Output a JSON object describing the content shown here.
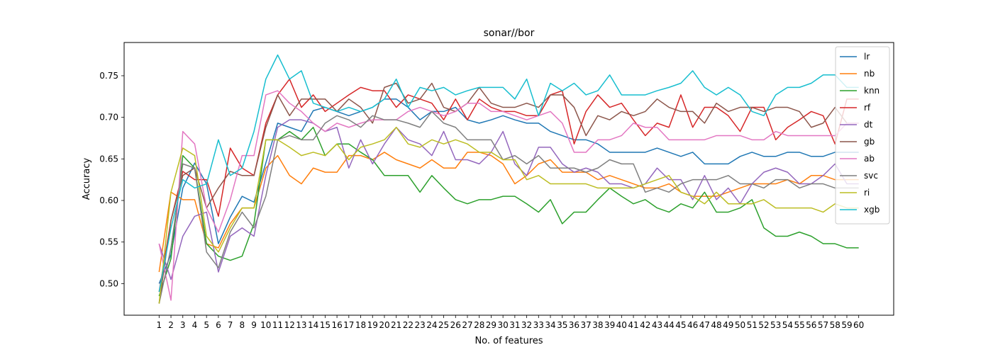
{
  "chart_data": {
    "type": "line",
    "title": "sonar//bor",
    "xlabel": "No. of features",
    "ylabel": "Accuracy",
    "xlim": [
      -1.95,
      62.95
    ],
    "ylim": [
      0.462,
      0.79
    ],
    "x": [
      1,
      2,
      3,
      4,
      5,
      6,
      7,
      8,
      9,
      10,
      11,
      12,
      13,
      14,
      15,
      16,
      17,
      18,
      19,
      20,
      21,
      22,
      23,
      24,
      25,
      26,
      27,
      28,
      29,
      30,
      31,
      32,
      33,
      34,
      35,
      36,
      37,
      38,
      39,
      40,
      41,
      42,
      43,
      44,
      45,
      46,
      47,
      48,
      49,
      50,
      51,
      52,
      53,
      54,
      55,
      56,
      57,
      58,
      59,
      60
    ],
    "yticks": [
      0.5,
      0.55,
      0.6,
      0.65,
      0.7,
      0.75
    ],
    "ytick_labels": [
      "0.50",
      "0.55",
      "0.60",
      "0.65",
      "0.70",
      "0.75"
    ],
    "grid": false,
    "legend_position": "top-right",
    "series": [
      {
        "name": "lr",
        "color": "#1f77b4",
        "values": [
          0.5,
          0.535,
          0.615,
          0.645,
          0.62,
          0.548,
          0.58,
          0.605,
          0.598,
          0.645,
          0.693,
          0.688,
          0.683,
          0.708,
          0.712,
          0.707,
          0.702,
          0.707,
          0.712,
          0.722,
          0.722,
          0.712,
          0.697,
          0.707,
          0.707,
          0.712,
          0.697,
          0.693,
          0.697,
          0.702,
          0.697,
          0.693,
          0.693,
          0.683,
          0.678,
          0.673,
          0.673,
          0.668,
          0.658,
          0.658,
          0.658,
          0.658,
          0.663,
          0.658,
          0.653,
          0.658,
          0.644,
          0.644,
          0.644,
          0.653,
          0.658,
          0.653,
          0.653,
          0.658,
          0.658,
          0.653,
          0.653,
          0.658,
          0.658,
          0.658
        ]
      },
      {
        "name": "nb",
        "color": "#ff7f0e",
        "values": [
          0.514,
          0.61,
          0.601,
          0.601,
          0.548,
          0.543,
          0.572,
          0.591,
          0.591,
          0.639,
          0.654,
          0.63,
          0.62,
          0.639,
          0.634,
          0.634,
          0.654,
          0.654,
          0.649,
          0.658,
          0.649,
          0.644,
          0.639,
          0.649,
          0.639,
          0.639,
          0.658,
          0.658,
          0.654,
          0.644,
          0.62,
          0.63,
          0.644,
          0.649,
          0.634,
          0.634,
          0.634,
          0.625,
          0.63,
          0.625,
          0.62,
          0.615,
          0.615,
          0.62,
          0.61,
          0.605,
          0.605,
          0.605,
          0.61,
          0.615,
          0.62,
          0.62,
          0.62,
          0.625,
          0.62,
          0.63,
          0.63,
          0.625,
          0.625,
          0.625
        ]
      },
      {
        "name": "knn",
        "color": "#2ca02c",
        "values": [
          0.485,
          0.53,
          0.654,
          0.639,
          0.548,
          0.533,
          0.528,
          0.533,
          0.572,
          0.673,
          0.673,
          0.683,
          0.673,
          0.688,
          0.654,
          0.668,
          0.668,
          0.658,
          0.649,
          0.63,
          0.63,
          0.63,
          0.61,
          0.63,
          0.615,
          0.601,
          0.596,
          0.601,
          0.601,
          0.605,
          0.605,
          0.596,
          0.586,
          0.601,
          0.572,
          0.586,
          0.586,
          0.601,
          0.615,
          0.605,
          0.596,
          0.601,
          0.591,
          0.586,
          0.596,
          0.591,
          0.61,
          0.586,
          0.586,
          0.591,
          0.601,
          0.567,
          0.557,
          0.557,
          0.562,
          0.557,
          0.548,
          0.548,
          0.543,
          0.543
        ]
      },
      {
        "name": "rf",
        "color": "#d62728",
        "values": [
          0.49,
          0.576,
          0.635,
          0.625,
          0.625,
          0.581,
          0.663,
          0.639,
          0.63,
          0.693,
          0.727,
          0.746,
          0.712,
          0.727,
          0.707,
          0.717,
          0.727,
          0.736,
          0.732,
          0.732,
          0.712,
          0.727,
          0.722,
          0.717,
          0.697,
          0.722,
          0.697,
          0.722,
          0.712,
          0.707,
          0.707,
          0.702,
          0.702,
          0.727,
          0.732,
          0.668,
          0.707,
          0.727,
          0.712,
          0.717,
          0.697,
          0.678,
          0.693,
          0.688,
          0.727,
          0.688,
          0.712,
          0.712,
          0.702,
          0.683,
          0.712,
          0.712,
          0.673,
          0.688,
          0.697,
          0.707,
          0.702,
          0.668,
          0.722,
          0.722
        ]
      },
      {
        "name": "dt",
        "color": "#9467bd",
        "values": [
          0.548,
          0.505,
          0.557,
          0.581,
          0.586,
          0.514,
          0.557,
          0.567,
          0.557,
          0.63,
          0.688,
          0.697,
          0.697,
          0.693,
          0.683,
          0.688,
          0.639,
          0.673,
          0.644,
          0.668,
          0.688,
          0.673,
          0.668,
          0.654,
          0.683,
          0.649,
          0.649,
          0.644,
          0.658,
          0.683,
          0.644,
          0.63,
          0.664,
          0.664,
          0.644,
          0.634,
          0.639,
          0.634,
          0.62,
          0.62,
          0.615,
          0.62,
          0.639,
          0.625,
          0.625,
          0.601,
          0.63,
          0.601,
          0.615,
          0.596,
          0.62,
          0.634,
          0.639,
          0.634,
          0.62,
          0.62,
          0.63,
          0.644,
          0.62,
          0.62
        ]
      },
      {
        "name": "gb",
        "color": "#8c564b",
        "values": [
          0.476,
          0.576,
          0.63,
          0.639,
          0.591,
          0.615,
          0.635,
          0.63,
          0.63,
          0.688,
          0.727,
          0.702,
          0.722,
          0.722,
          0.722,
          0.707,
          0.722,
          0.712,
          0.693,
          0.736,
          0.741,
          0.717,
          0.722,
          0.741,
          0.712,
          0.707,
          0.717,
          0.736,
          0.717,
          0.712,
          0.712,
          0.717,
          0.712,
          0.727,
          0.727,
          0.712,
          0.678,
          0.702,
          0.697,
          0.707,
          0.702,
          0.707,
          0.722,
          0.712,
          0.707,
          0.707,
          0.693,
          0.717,
          0.707,
          0.712,
          0.712,
          0.707,
          0.712,
          0.712,
          0.707,
          0.688,
          0.693,
          0.712,
          0.693,
          0.693
        ]
      },
      {
        "name": "ab",
        "color": "#e377c2",
        "values": [
          0.548,
          0.48,
          0.683,
          0.668,
          0.591,
          0.562,
          0.601,
          0.654,
          0.654,
          0.727,
          0.732,
          0.717,
          0.707,
          0.693,
          0.683,
          0.693,
          0.688,
          0.693,
          0.697,
          0.697,
          0.697,
          0.707,
          0.712,
          0.707,
          0.702,
          0.707,
          0.717,
          0.717,
          0.707,
          0.707,
          0.702,
          0.697,
          0.702,
          0.707,
          0.693,
          0.658,
          0.658,
          0.673,
          0.673,
          0.678,
          0.693,
          0.688,
          0.688,
          0.673,
          0.673,
          0.673,
          0.673,
          0.678,
          0.678,
          0.678,
          0.673,
          0.673,
          0.683,
          0.678,
          0.678,
          0.678,
          0.678,
          0.678,
          0.693,
          0.693
        ]
      },
      {
        "name": "svc",
        "color": "#7f7f7f",
        "values": [
          0.476,
          0.543,
          0.644,
          0.639,
          0.538,
          0.519,
          0.562,
          0.586,
          0.567,
          0.605,
          0.673,
          0.678,
          0.673,
          0.673,
          0.693,
          0.702,
          0.697,
          0.688,
          0.702,
          0.697,
          0.697,
          0.693,
          0.688,
          0.707,
          0.693,
          0.688,
          0.673,
          0.673,
          0.673,
          0.649,
          0.654,
          0.644,
          0.654,
          0.639,
          0.639,
          0.639,
          0.634,
          0.639,
          0.649,
          0.644,
          0.644,
          0.61,
          0.615,
          0.61,
          0.62,
          0.625,
          0.625,
          0.625,
          0.63,
          0.62,
          0.62,
          0.615,
          0.625,
          0.625,
          0.615,
          0.62,
          0.62,
          0.615,
          0.615,
          0.615
        ]
      },
      {
        "name": "ri",
        "color": "#bcbd22",
        "values": [
          0.476,
          0.61,
          0.663,
          0.654,
          0.557,
          0.538,
          0.567,
          0.591,
          0.591,
          0.673,
          0.673,
          0.664,
          0.654,
          0.658,
          0.654,
          0.668,
          0.649,
          0.664,
          0.668,
          0.673,
          0.688,
          0.668,
          0.664,
          0.673,
          0.668,
          0.673,
          0.668,
          0.658,
          0.658,
          0.649,
          0.649,
          0.625,
          0.63,
          0.62,
          0.62,
          0.62,
          0.62,
          0.615,
          0.615,
          0.615,
          0.615,
          0.62,
          0.625,
          0.63,
          0.61,
          0.605,
          0.596,
          0.61,
          0.596,
          0.596,
          0.596,
          0.601,
          0.591,
          0.591,
          0.591,
          0.591,
          0.586,
          0.596,
          0.591,
          0.591
        ]
      },
      {
        "name": "xgb",
        "color": "#17becf",
        "values": [
          0.49,
          0.567,
          0.625,
          0.615,
          0.62,
          0.673,
          0.63,
          0.639,
          0.683,
          0.746,
          0.775,
          0.746,
          0.756,
          0.717,
          0.712,
          0.707,
          0.712,
          0.707,
          0.712,
          0.722,
          0.746,
          0.712,
          0.736,
          0.732,
          0.736,
          0.727,
          0.732,
          0.736,
          0.736,
          0.736,
          0.722,
          0.746,
          0.702,
          0.741,
          0.732,
          0.741,
          0.727,
          0.732,
          0.751,
          0.727,
          0.727,
          0.727,
          0.732,
          0.736,
          0.741,
          0.756,
          0.736,
          0.727,
          0.736,
          0.727,
          0.707,
          0.702,
          0.727,
          0.736,
          0.736,
          0.741,
          0.751,
          0.751,
          0.736,
          0.736
        ]
      }
    ]
  }
}
